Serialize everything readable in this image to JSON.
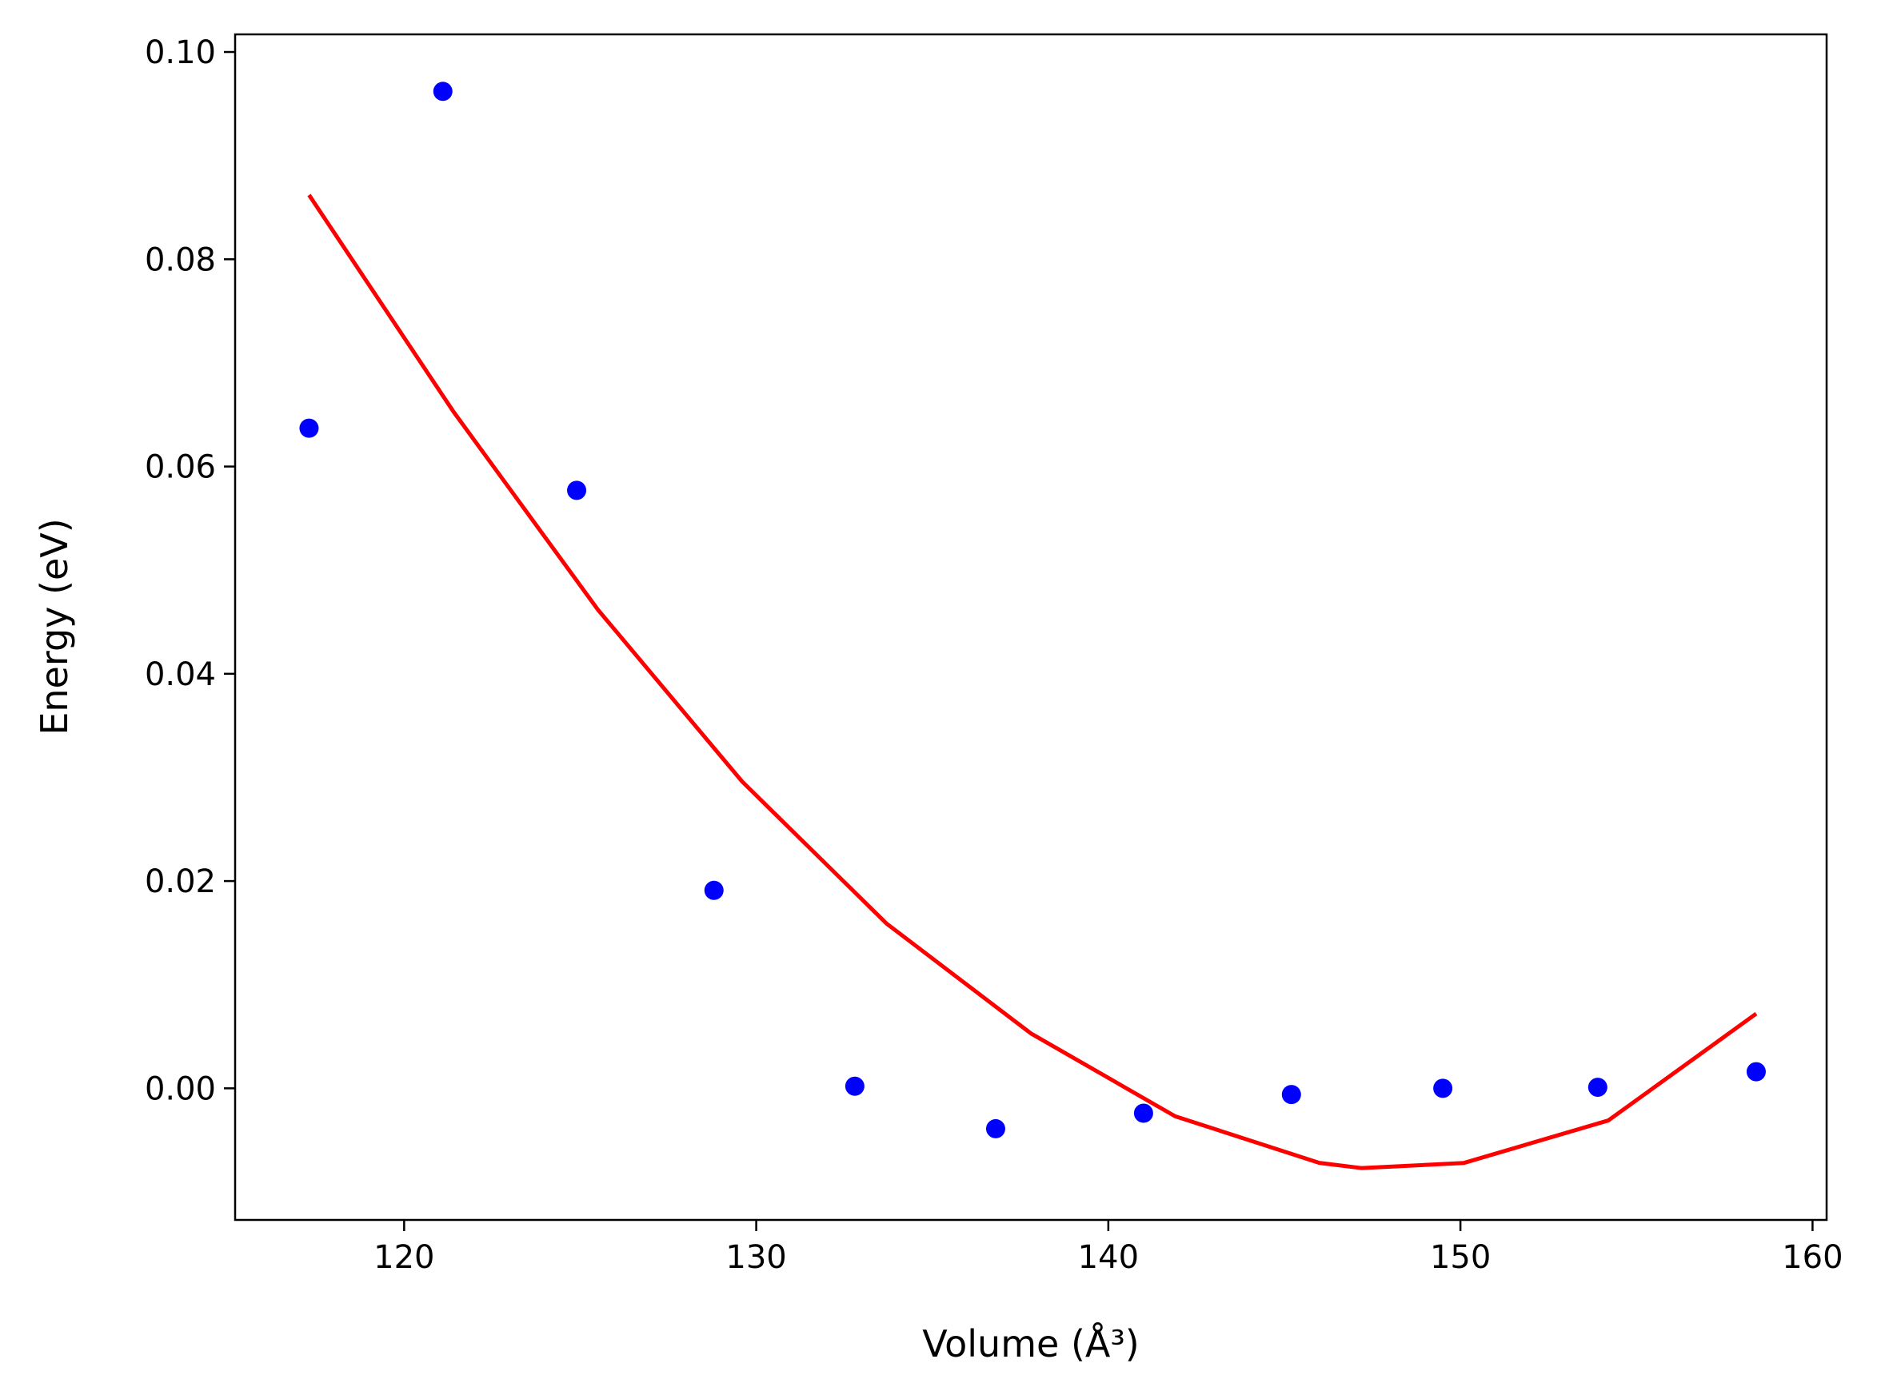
{
  "chart_data": {
    "type": "scatter",
    "xlabel": "Volume (Å³)",
    "ylabel": "Energy (eV)",
    "xlim": [
      115.2,
      160.4
    ],
    "ylim": [
      -0.0127,
      0.1017
    ],
    "x_ticks": [
      120,
      130,
      140,
      150,
      160
    ],
    "x_tick_labels": [
      "120",
      "130",
      "140",
      "150",
      "160"
    ],
    "y_ticks": [
      0.0,
      0.02,
      0.04,
      0.06,
      0.08,
      0.1
    ],
    "y_tick_labels": [
      "0.00",
      "0.02",
      "0.04",
      "0.06",
      "0.08",
      "0.10"
    ],
    "grid": false,
    "series": [
      {
        "kind": "scatter",
        "color": "#0000ff",
        "x": [
          117.3,
          121.1,
          124.9,
          128.8,
          132.8,
          136.8,
          141.0,
          145.2,
          149.5,
          153.9,
          158.4
        ],
        "y": [
          0.0637,
          0.0962,
          0.0577,
          0.0191,
          0.0002,
          -0.0039,
          -0.0024,
          -0.0006,
          0.0,
          0.0001,
          0.0016
        ]
      },
      {
        "kind": "line",
        "color": "#ff0000",
        "x": [
          117.3,
          121.4,
          125.5,
          129.6,
          133.7,
          137.8,
          141.9,
          146.0,
          147.2,
          150.1,
          154.2,
          158.4
        ],
        "y": [
          0.0862,
          0.0653,
          0.0462,
          0.0296,
          0.0159,
          0.0053,
          -0.0027,
          -0.0072,
          -0.0077,
          -0.0072,
          -0.0031,
          0.0072
        ]
      }
    ]
  }
}
